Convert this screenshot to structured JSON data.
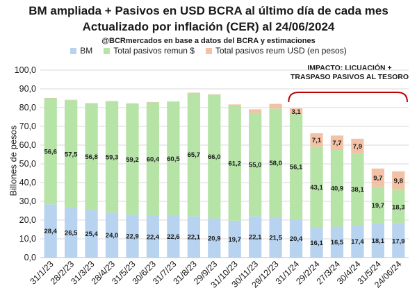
{
  "title": "BM ampliada + Pasivos en USD BCRA al último día de cada mes",
  "title2": "Actualizado por inflación (CER) al 24/06/2024",
  "subtitle": "@BCRmercados en base a datos del BCRA y estimaciones",
  "annotation": [
    "IMPACTO: LICUACIÓN +",
    "TRASPASO PASIVOS AL TESORO"
  ],
  "colors": {
    "bm": "#b8d3ef",
    "remun": "#b6e3a6",
    "usd": "#f3c2a6"
  },
  "chart_data": {
    "type": "bar",
    "stacked": true,
    "ylabel": "Billones de pesos",
    "ylim": [
      0,
      100
    ],
    "ytick_step": 10,
    "grid": true,
    "legend_position": "top",
    "categories": [
      "31/1/23",
      "28/2/23",
      "31/3/23",
      "28/4/23",
      "31/5/23",
      "30/6/23",
      "31/7/23",
      "31/8/23",
      "29/9/23",
      "31/10/23",
      "30/11/23",
      "29/12/23",
      "31/1/24",
      "29/2/24",
      "27/3/24",
      "30/4/24",
      "31/5/24",
      "24/06/24"
    ],
    "series": [
      {
        "name": "BM",
        "values": [
          28.4,
          26.5,
          25.4,
          24.0,
          22.9,
          22.4,
          22.6,
          22.1,
          20.9,
          19.7,
          22.1,
          21.5,
          20.4,
          16.1,
          16.5,
          17.4,
          18.1,
          17.9
        ]
      },
      {
        "name": "Total pasivos remun $",
        "values": [
          56.6,
          57.5,
          56.8,
          59.3,
          59.2,
          60.4,
          60.5,
          65.7,
          66.0,
          61.2,
          55.0,
          58.0,
          56.1,
          43.1,
          40.9,
          38.1,
          19.7,
          18.3
        ]
      },
      {
        "name": "Total pasivos reum USD (en pesos)",
        "values": [
          0.2,
          0.2,
          0.2,
          0.2,
          0.2,
          0.2,
          0.2,
          0.2,
          0.2,
          0.8,
          2.0,
          2.5,
          3.1,
          7.1,
          7.7,
          7.9,
          9.7,
          9.8
        ]
      }
    ],
    "data_labels": {
      "BM": [
        "28,4",
        "26,5",
        "25,4",
        "24,0",
        "22,9",
        "22,4",
        "22,6",
        "22,1",
        "20,9",
        "19,7",
        "22,1",
        "21,5",
        "20,4",
        "16,1",
        "16,5",
        "17,4",
        "18,1",
        "17,9"
      ],
      "Total pasivos remun $": [
        "56,6",
        "57,5",
        "56,8",
        "59,3",
        "59,2",
        "60,4",
        "60,5",
        "65,7",
        "66,0",
        "61,2",
        "55,0",
        "58,0",
        "56,1",
        "43,1",
        "40,9",
        "38,1",
        "19,7",
        "18,3"
      ],
      "Total pasivos reum USD (en pesos)": [
        "",
        "",
        "",
        "",
        "",
        "",
        "",
        "",
        "",
        "",
        "",
        "",
        "3,1",
        "7,1",
        "7,7",
        "7,9",
        "9,7",
        "9,8"
      ]
    },
    "ytick_labels": [
      "0,0",
      "10,0",
      "20,0",
      "30,0",
      "40,0",
      "50,0",
      "60,0",
      "70,0",
      "80,0",
      "90,0",
      "100,0"
    ]
  }
}
